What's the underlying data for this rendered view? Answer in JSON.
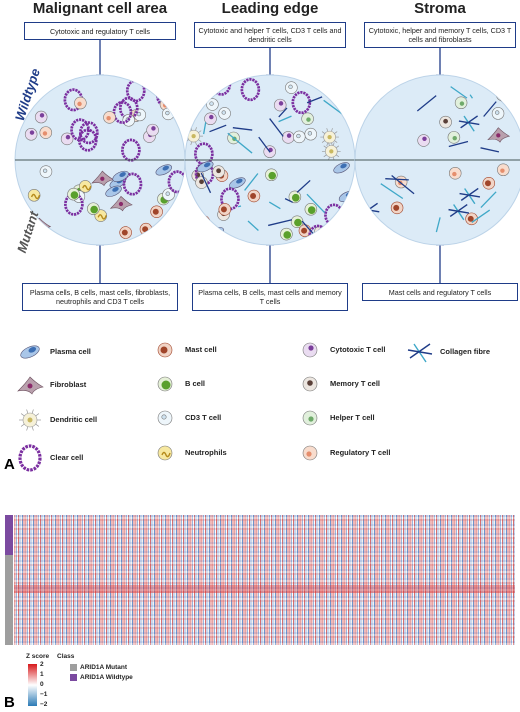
{
  "panel_a": {
    "label": "A",
    "regions": [
      {
        "title": "Malignant cell area",
        "top_box": "Cytotoxic and regulatory T cells",
        "bottom_box": "Plasma cells, B cells, mast cells, fibroblasts, neutrophils and CD3 T cells"
      },
      {
        "title": "Leading edge",
        "top_box": "Cytotoxic and helper T cells, CD3 T cells and dendritic cells",
        "bottom_box": "Plasma cells, B cells, mast cells and memory T cells"
      },
      {
        "title": "Stroma",
        "top_box": "Cytotoxic, helper and memory T cells, CD3 T cells and fibroblasts",
        "bottom_box": "Mast cells and regulatory T cells"
      }
    ],
    "wildtype_label": "Wildtype",
    "mutant_label": "Mutant",
    "legend": [
      "Plasma cell",
      "Fibroblast",
      "Dendritic cell",
      "Clear cell",
      "Mast cell",
      "B cell",
      "CD3 T cell",
      "Neutrophils",
      "Cytotoxic T cell",
      "Memory T cell",
      "Helper T cell",
      "Regulatory T cell",
      "Collagen fibre"
    ]
  },
  "panel_b": {
    "label": "B",
    "zscore_title": "Z score",
    "class_title": "Class",
    "zscore_ticks": [
      "2",
      "1",
      "0",
      "−1",
      "−2"
    ],
    "classes": [
      "ARID1A Mutant",
      "ARID1A Wildtype"
    ]
  }
}
